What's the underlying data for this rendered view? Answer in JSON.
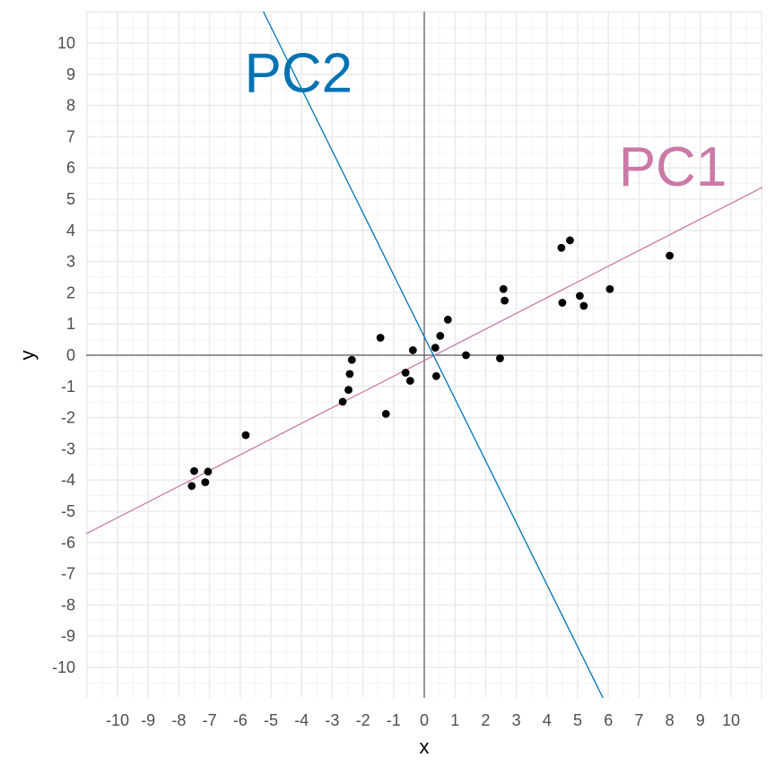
{
  "chart_data": {
    "type": "scatter",
    "title": "",
    "xlabel": "x",
    "ylabel": "y",
    "xlim": [
      -11,
      11
    ],
    "ylim": [
      -11,
      11
    ],
    "x_ticks": [
      -10,
      -9,
      -8,
      -7,
      -6,
      -5,
      -4,
      -3,
      -2,
      -1,
      0,
      1,
      2,
      3,
      4,
      5,
      6,
      7,
      8,
      9,
      10
    ],
    "y_ticks": [
      -10,
      -9,
      -8,
      -7,
      -6,
      -5,
      -4,
      -3,
      -2,
      -1,
      0,
      1,
      2,
      3,
      4,
      5,
      6,
      7,
      8,
      9,
      10
    ],
    "grid": true,
    "points": [
      {
        "x": -7.58,
        "y": -4.19
      },
      {
        "x": -7.5,
        "y": -3.71
      },
      {
        "x": -7.14,
        "y": -4.07
      },
      {
        "x": -7.05,
        "y": -3.73
      },
      {
        "x": -5.82,
        "y": -2.56
      },
      {
        "x": -2.66,
        "y": -1.49
      },
      {
        "x": -2.47,
        "y": -1.11
      },
      {
        "x": -2.43,
        "y": -0.6
      },
      {
        "x": -2.36,
        "y": -0.15
      },
      {
        "x": -1.43,
        "y": 0.56
      },
      {
        "x": -1.25,
        "y": -1.88
      },
      {
        "x": -0.61,
        "y": -0.56
      },
      {
        "x": -0.46,
        "y": -0.82
      },
      {
        "x": -0.37,
        "y": 0.16
      },
      {
        "x": 0.36,
        "y": 0.24
      },
      {
        "x": 0.39,
        "y": -0.67
      },
      {
        "x": 0.52,
        "y": 0.62
      },
      {
        "x": 0.77,
        "y": 1.14
      },
      {
        "x": 1.36,
        "y": 0.0
      },
      {
        "x": 2.47,
        "y": -0.1
      },
      {
        "x": 2.58,
        "y": 2.12
      },
      {
        "x": 2.62,
        "y": 1.75
      },
      {
        "x": 4.47,
        "y": 3.44
      },
      {
        "x": 4.5,
        "y": 1.68
      },
      {
        "x": 4.75,
        "y": 3.68
      },
      {
        "x": 5.07,
        "y": 1.9
      },
      {
        "x": 5.2,
        "y": 1.58
      },
      {
        "x": 6.05,
        "y": 2.12
      },
      {
        "x": 8.0,
        "y": 3.19
      }
    ],
    "lines": [
      {
        "name": "PC1",
        "color": "#cc79a7",
        "slope": 0.5035,
        "intercept": -0.17
      },
      {
        "name": "PC2",
        "color": "#0072b2",
        "slope": -1.986,
        "intercept": 0.59
      }
    ],
    "annotations": [
      {
        "text": "PC2",
        "x": -4.1,
        "y": 8.9,
        "color": "#0072b2"
      },
      {
        "text": "PC1",
        "x": 8.1,
        "y": 5.9,
        "color": "#cc79a7"
      }
    ],
    "reference_lines": {
      "x": 0,
      "y": 0
    }
  }
}
